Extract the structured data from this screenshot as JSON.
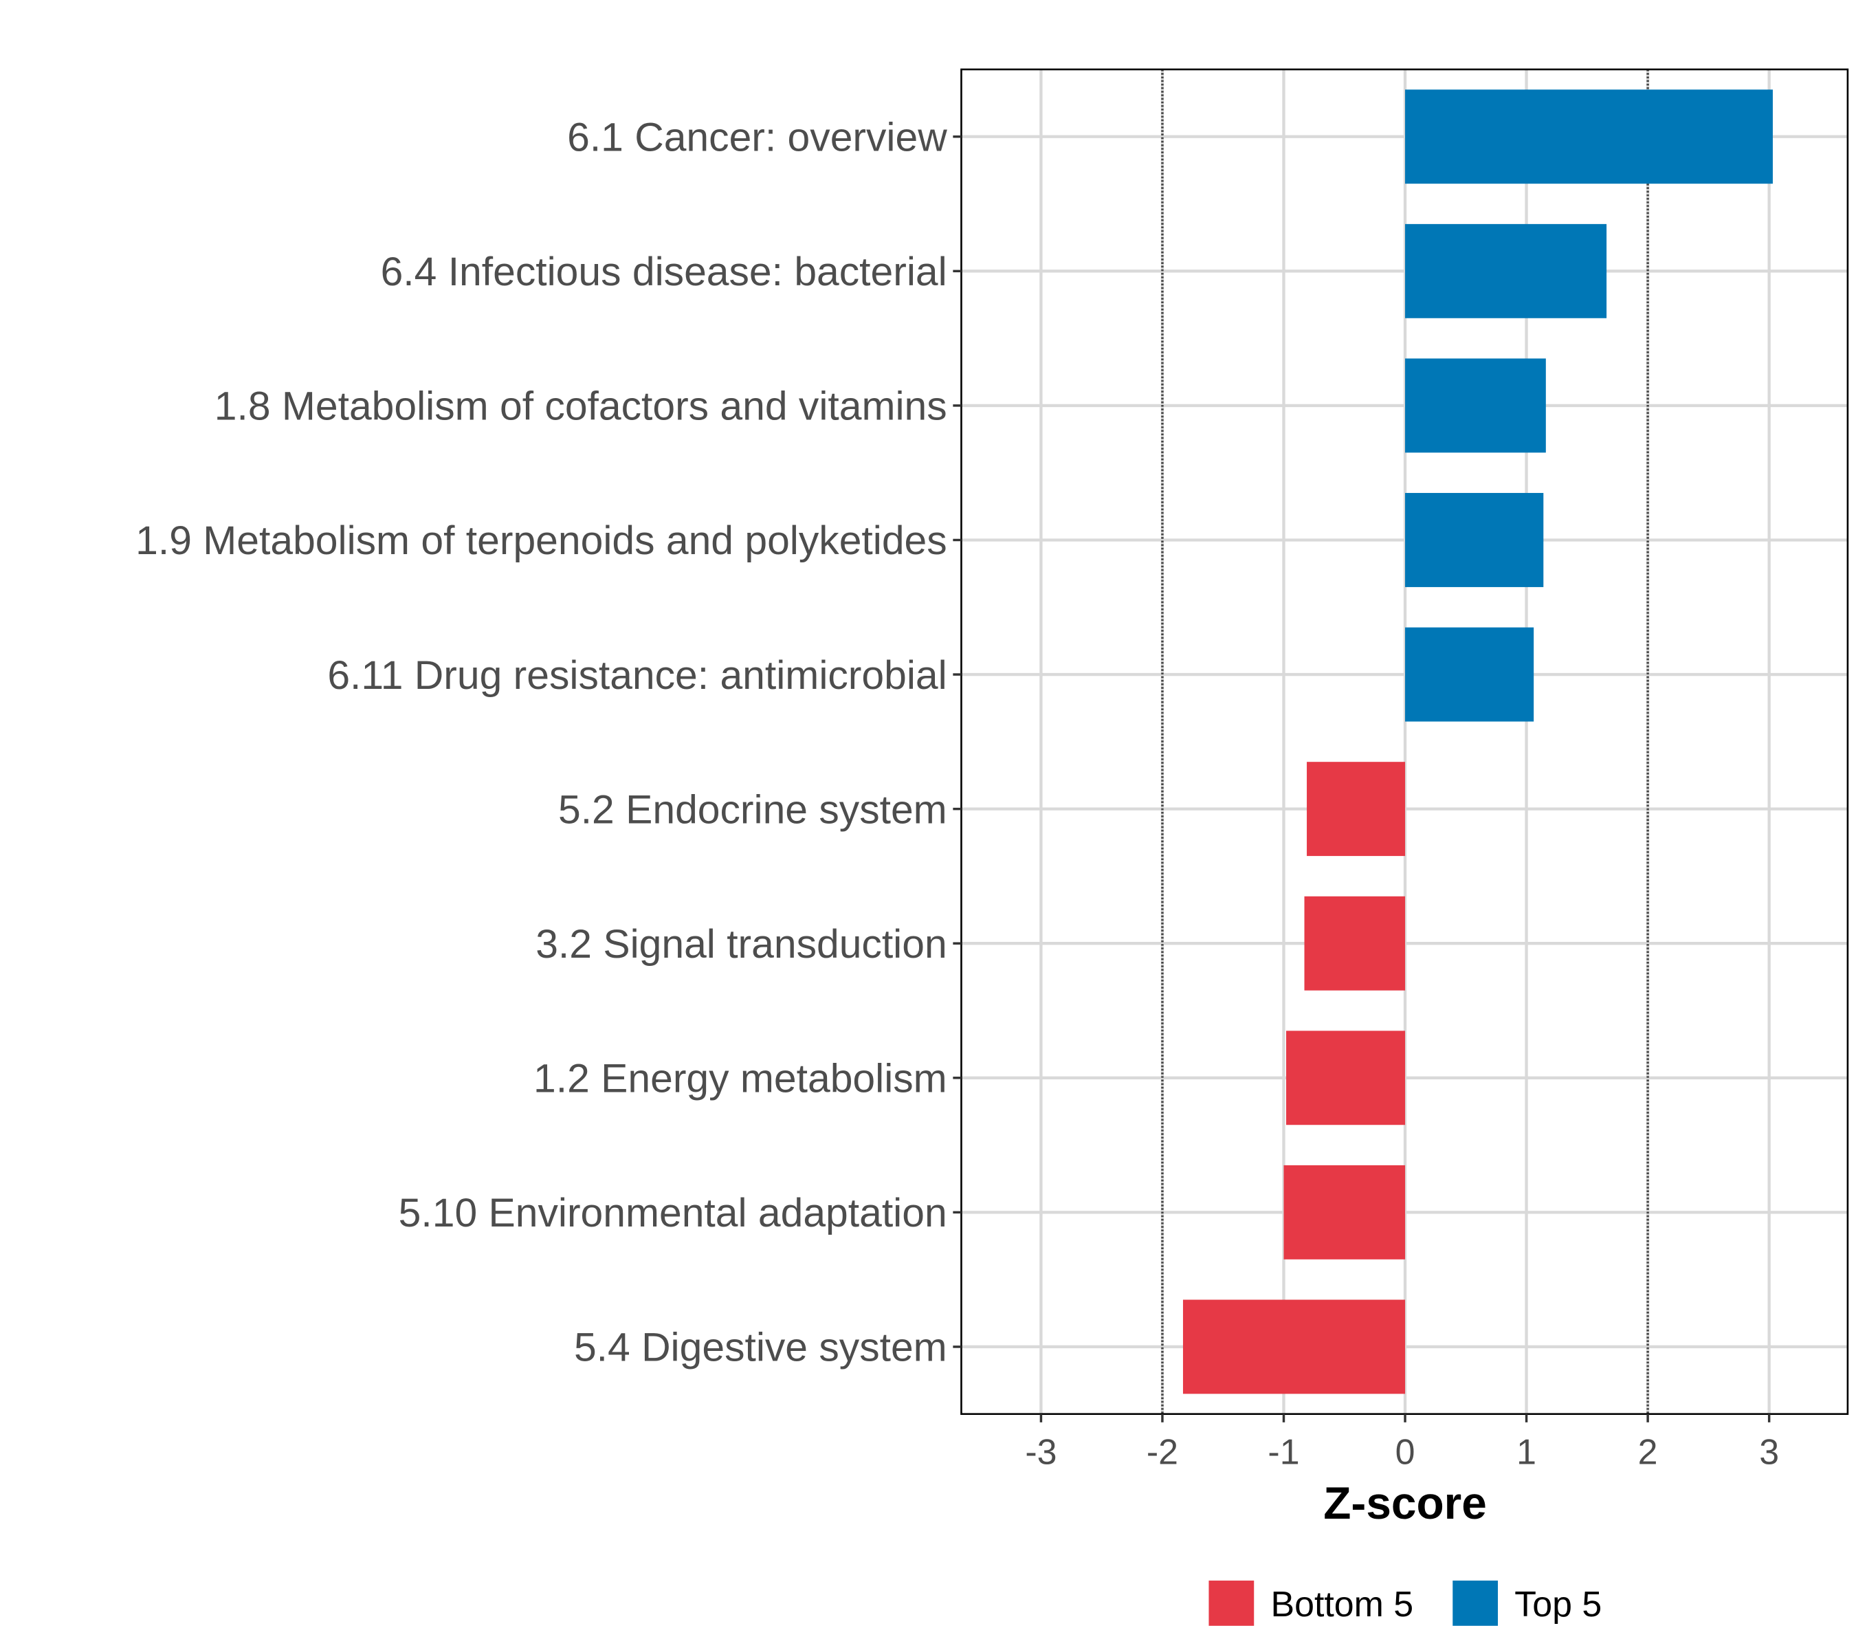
{
  "chart_data": {
    "type": "bar",
    "orientation": "horizontal",
    "title": "",
    "xlabel": "Z-score",
    "ylabel": "",
    "xlim": [
      -3.6,
      3.65
    ],
    "xticks": [
      -3,
      -2,
      -1,
      0,
      1,
      2,
      3
    ],
    "xtick_labels": [
      "-3",
      "-2",
      "-1",
      "0",
      "1",
      "2",
      "3"
    ],
    "grid": true,
    "reference_lines": [
      -2,
      2
    ],
    "categories": [
      "6.1 Cancer: overview",
      "6.4 Infectious disease: bacterial",
      "1.8 Metabolism of cofactors and vitamins",
      "1.9 Metabolism of terpenoids and polyketides",
      "6.11 Drug resistance: antimicrobial",
      "5.2 Endocrine system",
      "3.2 Signal transduction",
      "1.2 Energy metabolism",
      "5.10 Environmental adaptation",
      "5.4 Digestive system"
    ],
    "values": [
      3.03,
      1.66,
      1.16,
      1.14,
      1.06,
      -0.81,
      -0.83,
      -0.98,
      -1.0,
      -1.83
    ],
    "groups": [
      "Top 5",
      "Top 5",
      "Top 5",
      "Top 5",
      "Top 5",
      "Bottom 5",
      "Bottom 5",
      "Bottom 5",
      "Bottom 5",
      "Bottom 5"
    ],
    "legend": {
      "placement": "bottom",
      "entries": [
        {
          "label": "Bottom 5",
          "color": "#E63946"
        },
        {
          "label": "Top 5",
          "color": "#0077B6"
        }
      ]
    }
  }
}
